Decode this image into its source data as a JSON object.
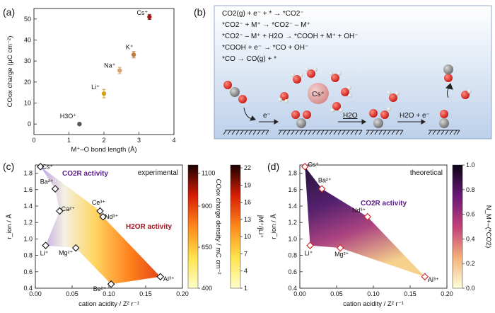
{
  "panels": {
    "a": "(a)",
    "b": "(b)",
    "c": "(c)",
    "d": "(d)"
  },
  "equations": [
    "CO2(g) + e⁻ + * → *CO2⁻",
    "*CO2⁻ + M⁺ → *CO2⁻ – M⁺",
    "*CO2⁻ – M⁺ + H2O → *COOH + M⁺ + OH⁻",
    "*COOH + e⁻ → *CO + OH⁻",
    "*CO → CO(g) + *"
  ],
  "scheme": {
    "step1": "e⁻",
    "step2": "H2O",
    "step3": "H2O + e⁻",
    "cation": "Cs⁺"
  },
  "colors": {
    "cs": "#9b1b1b",
    "k": "#c07a3c",
    "na": "#d9a36a",
    "li": "#d4a017",
    "h3o": "#555555",
    "blue_bg": "#c9d9ee",
    "d_label": "#cc2222"
  },
  "chart_data": [
    {
      "panel": "a",
      "type": "scatter",
      "xlabel": "M⁺–O bond length (Å)",
      "ylabel": "COox charge (μC cm⁻²)",
      "xlim": [
        0,
        4
      ],
      "ylim": [
        -5,
        55
      ],
      "xticks": [
        "0",
        "1",
        "2",
        "3",
        "4"
      ],
      "yticks": [
        "0",
        "10",
        "20",
        "30",
        "40",
        "50"
      ],
      "points": [
        {
          "label": "H3O⁺",
          "x": 1.3,
          "y": 0,
          "err": 0.6,
          "color": "#555555"
        },
        {
          "label": "Li⁺",
          "x": 2.0,
          "y": 14.5,
          "err": 2,
          "color": "#d4a017"
        },
        {
          "label": "Na⁺",
          "x": 2.45,
          "y": 25.5,
          "err": 1.5,
          "color": "#d9a36a"
        },
        {
          "label": "K⁺",
          "x": 2.85,
          "y": 33,
          "err": 1.5,
          "color": "#c07a3c"
        },
        {
          "label": "Cs⁺",
          "x": 3.3,
          "y": 51,
          "err": 1.2,
          "color": "#9b1b1b"
        }
      ]
    },
    {
      "panel": "c",
      "type": "scatter",
      "xlabel": "cation acidity / Z² r⁻¹",
      "ylabel": "r_ion / Å",
      "xlim": [
        0,
        0.2
      ],
      "ylim": [
        0.4,
        1.9
      ],
      "xticks": [
        "0.00",
        "0.05",
        "0.10",
        "0.15",
        "0.20"
      ],
      "yticks": [
        "0.4",
        "0.6",
        "0.8",
        "1.0",
        "1.2",
        "1.4",
        "1.6",
        "1.8"
      ],
      "corner_label": "experimental",
      "regions": [
        "CO2R activity",
        "H2OR activity"
      ],
      "points": [
        {
          "label": "Cs⁺",
          "x": 0.007,
          "y": 1.88
        },
        {
          "label": "Ba²⁺",
          "x": 0.027,
          "y": 1.61
        },
        {
          "label": "Ca²⁺",
          "x": 0.033,
          "y": 1.34
        },
        {
          "label": "Ce³⁺",
          "x": 0.088,
          "y": 1.34
        },
        {
          "label": "Nd³⁺",
          "x": 0.092,
          "y": 1.27
        },
        {
          "label": "Li⁺",
          "x": 0.014,
          "y": 0.92
        },
        {
          "label": "Mg²⁺",
          "x": 0.055,
          "y": 0.89
        },
        {
          "label": "Be²⁺",
          "x": 0.103,
          "y": 0.45
        },
        {
          "label": "Al³⁺",
          "x": 0.17,
          "y": 0.54
        }
      ],
      "colorbar_left": {
        "label": "COox charge density / mC cm⁻²",
        "ticks": [
          "400",
          "650",
          "900",
          "1100"
        ]
      },
      "colorbar_right": {
        "label": "jM⁺/jLi⁺",
        "ticks": [
          "1",
          "4",
          "7",
          "10",
          "13",
          "16",
          "19",
          "22"
        ]
      }
    },
    {
      "panel": "d",
      "type": "scatter",
      "xlabel": "cation acidity / Z² r⁻¹",
      "ylabel": "r_ion / Å",
      "xlim": [
        0,
        0.2
      ],
      "ylim": [
        0.4,
        1.9
      ],
      "xticks": [
        "0.00",
        "0.05",
        "0.10",
        "0.15",
        "0.20"
      ],
      "yticks": [
        "0.4",
        "0.6",
        "0.8",
        "1.0",
        "1.2",
        "1.4",
        "1.6",
        "1.8"
      ],
      "corner_label": "theoretical",
      "regions": [
        "CO2R activity"
      ],
      "points": [
        {
          "label": "Cs⁺",
          "x": 0.007,
          "y": 1.88
        },
        {
          "label": "Ba²⁺",
          "x": 0.03,
          "y": 1.61
        },
        {
          "label": "Nd³⁺",
          "x": 0.092,
          "y": 1.27
        },
        {
          "label": "Li⁺",
          "x": 0.014,
          "y": 0.92
        },
        {
          "label": "Mg²⁺",
          "x": 0.055,
          "y": 0.89
        },
        {
          "label": "Al³⁺",
          "x": 0.17,
          "y": 0.54
        }
      ],
      "colorbar": {
        "label": "N_M+–(*CO2)",
        "ticks": [
          "0.0",
          "0.2",
          "0.4",
          "0.6",
          "0.8",
          "1.0"
        ]
      }
    }
  ]
}
